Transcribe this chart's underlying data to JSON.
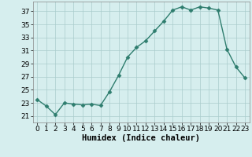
{
  "x": [
    0,
    1,
    2,
    3,
    4,
    5,
    6,
    7,
    8,
    9,
    10,
    11,
    12,
    13,
    14,
    15,
    16,
    17,
    18,
    19,
    20,
    21,
    22,
    23
  ],
  "y": [
    23.5,
    22.5,
    21.2,
    23.0,
    22.8,
    22.7,
    22.8,
    22.6,
    24.7,
    27.2,
    30.0,
    31.5,
    32.5,
    34.0,
    35.5,
    37.2,
    37.7,
    37.2,
    37.7,
    37.5,
    37.2,
    31.2,
    28.5,
    26.8
  ],
  "line_color": "#2e7d6e",
  "marker": "D",
  "marker_size": 2.5,
  "bg_color": "#d6eeee",
  "grid_color": "#aacccc",
  "xlabel": "Humidex (Indice chaleur)",
  "xlim": [
    -0.5,
    23.5
  ],
  "ylim": [
    20,
    38.5
  ],
  "yticks": [
    21,
    23,
    25,
    27,
    29,
    31,
    33,
    35,
    37
  ],
  "xticks": [
    0,
    1,
    2,
    3,
    4,
    5,
    6,
    7,
    8,
    9,
    10,
    11,
    12,
    13,
    14,
    15,
    16,
    17,
    18,
    19,
    20,
    21,
    22,
    23
  ],
  "font_size": 6.5,
  "xlabel_fontsize": 7.5,
  "linewidth": 1.0
}
